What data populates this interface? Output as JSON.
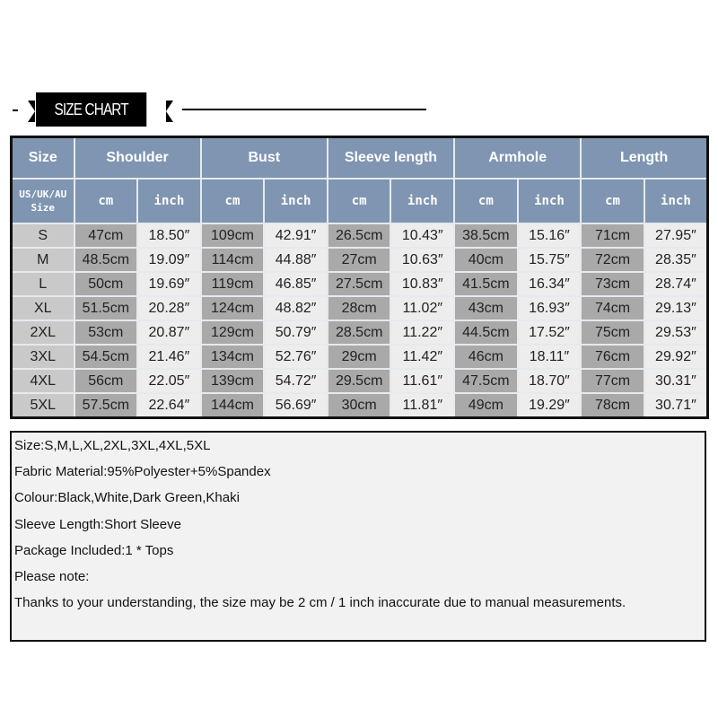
{
  "title": "SIZE CHART",
  "headers": {
    "size": "Size",
    "groups": [
      "Shoulder",
      "Bust",
      "Sleeve length",
      "Armhole",
      "Length"
    ],
    "size_sub": "US/UK/AU Size",
    "unit_cm": "cm",
    "unit_inch": "inch"
  },
  "rows": [
    {
      "size": "S",
      "v": [
        "47cm",
        "18.50″",
        "109cm",
        "42.91″",
        "26.5cm",
        "10.43″",
        "38.5cm",
        "15.16″",
        "71cm",
        "27.95″"
      ]
    },
    {
      "size": "M",
      "v": [
        "48.5cm",
        "19.09″",
        "114cm",
        "44.88″",
        "27cm",
        "10.63″",
        "40cm",
        "15.75″",
        "72cm",
        "28.35″"
      ]
    },
    {
      "size": "L",
      "v": [
        "50cm",
        "19.69″",
        "119cm",
        "46.85″",
        "27.5cm",
        "10.83″",
        "41.5cm",
        "16.34″",
        "73cm",
        "28.74″"
      ]
    },
    {
      "size": "XL",
      "v": [
        "51.5cm",
        "20.28″",
        "124cm",
        "48.82″",
        "28cm",
        "11.02″",
        "43cm",
        "16.93″",
        "74cm",
        "29.13″"
      ]
    },
    {
      "size": "2XL",
      "v": [
        "53cm",
        "20.87″",
        "129cm",
        "50.79″",
        "28.5cm",
        "11.22″",
        "44.5cm",
        "17.52″",
        "75cm",
        "29.53″"
      ]
    },
    {
      "size": "3XL",
      "v": [
        "54.5cm",
        "21.46″",
        "134cm",
        "52.76″",
        "29cm",
        "11.42″",
        "46cm",
        "18.11″",
        "76cm",
        "29.92″"
      ]
    },
    {
      "size": "4XL",
      "v": [
        "56cm",
        "22.05″",
        "139cm",
        "54.72″",
        "29.5cm",
        "11.61″",
        "47.5cm",
        "18.70″",
        "77cm",
        "30.31″"
      ]
    },
    {
      "size": "5XL",
      "v": [
        "57.5cm",
        "22.64″",
        "144cm",
        "56.69″",
        "30cm",
        "11.81″",
        "49cm",
        "19.29″",
        "78cm",
        "30.71″"
      ]
    }
  ],
  "notes": [
    "Size:S,M,L,XL,2XL,3XL,4XL,5XL",
    "Fabric Material:95%Polyester+5%Spandex",
    "Colour:Black,White,Dark Green,Khaki",
    "Sleeve Length:Short Sleeve",
    "Package Included:1 * Tops",
    "Please note:",
    "Thanks to your understanding, the size may be 2 cm / 1 inch inaccurate due to manual measurements."
  ],
  "colors": {
    "header": "#7f95b1",
    "size_cell": "#c9c9c9",
    "cm_cell": "#a9a9a9",
    "inch_cell": "#ededed"
  }
}
